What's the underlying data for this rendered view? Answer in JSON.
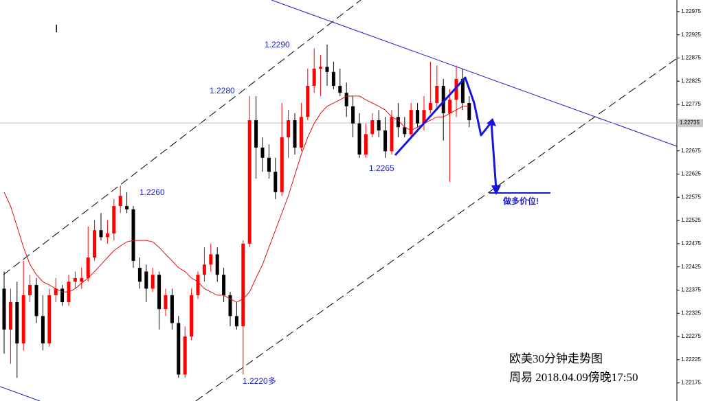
{
  "chart_data": {
    "type": "candlestick",
    "ylim": [
      1.22136,
      1.23
    ],
    "yticks": [
      1.22975,
      1.22925,
      1.22875,
      1.22825,
      1.22775,
      1.22675,
      1.22625,
      1.22575,
      1.22525,
      1.22475,
      1.22425,
      1.22375,
      1.22325,
      1.22275,
      1.22225,
      1.22175
    ],
    "up_color": "#ff0000",
    "down_color": "#000000",
    "open": [
      1.22378,
      1.2229,
      1.22349,
      1.2226,
      1.22364,
      1.22386,
      1.22319,
      1.2226,
      1.22364,
      1.22378,
      1.22349,
      1.22393,
      1.22393,
      1.22401,
      1.22445,
      1.22504,
      1.22489,
      1.22497,
      1.22556,
      1.22556,
      1.22549,
      1.22423,
      1.22415,
      1.22378,
      1.22408,
      1.22334,
      1.22364,
      1.22304,
      1.22193,
      1.22275,
      1.22364,
      1.22408,
      1.2243,
      1.22452,
      1.22408,
      1.22364,
      1.22319,
      1.22297,
      1.22475,
      1.22741,
      1.22682,
      1.2266,
      1.2263,
      1.22586,
      1.22704,
      1.22741,
      1.22682,
      1.22748,
      1.22815,
      1.22852,
      1.22856,
      1.22845,
      1.22815,
      1.228,
      1.22771,
      1.22734,
      1.22667,
      1.22711,
      1.22741,
      1.22719,
      1.22674,
      1.22748,
      1.22726,
      1.22711,
      1.22763,
      1.22734,
      1.22763,
      1.22778,
      1.22815,
      1.22756,
      1.22785,
      1.2283,
      1.22778
    ],
    "high": [
      1.22415,
      1.22378,
      1.22393,
      1.22438,
      1.22408,
      1.22401,
      1.22364,
      1.22378,
      1.22401,
      1.22386,
      1.22408,
      1.22415,
      1.22423,
      1.22512,
      1.22526,
      1.22541,
      1.22526,
      1.22571,
      1.226,
      1.22586,
      1.22556,
      1.22445,
      1.2243,
      1.22423,
      1.22415,
      1.22378,
      1.22378,
      1.22319,
      1.22297,
      1.22378,
      1.22415,
      1.22467,
      1.22475,
      1.22467,
      1.22423,
      1.22371,
      1.22349,
      1.22482,
      1.22793,
      1.22793,
      1.22704,
      1.22689,
      1.2266,
      1.22778,
      1.22763,
      1.22756,
      1.22778,
      1.22852,
      1.22896,
      1.22882,
      1.22904,
      1.22867,
      1.22852,
      1.22822,
      1.22793,
      1.22756,
      1.22734,
      1.22756,
      1.22763,
      1.22748,
      1.22763,
      1.22778,
      1.22748,
      1.22778,
      1.22778,
      1.22793,
      1.22867,
      1.22859,
      1.2283,
      1.22808,
      1.22859,
      1.22852,
      1.22793
    ],
    "low": [
      1.22238,
      1.22216,
      1.22186,
      1.22245,
      1.22349,
      1.22304,
      1.22245,
      1.22253,
      1.22349,
      1.22341,
      1.22341,
      1.22378,
      1.22378,
      1.22393,
      1.22438,
      1.22482,
      1.22475,
      1.22482,
      1.22541,
      1.22541,
      1.22423,
      1.22378,
      1.22349,
      1.22371,
      1.2229,
      1.22319,
      1.2229,
      1.22186,
      1.22186,
      1.22267,
      1.22356,
      1.22393,
      1.22415,
      1.22393,
      1.22349,
      1.22297,
      1.2229,
      1.22193,
      1.22467,
      1.22615,
      1.2263,
      1.22615,
      1.22571,
      1.22578,
      1.2266,
      1.22667,
      1.22674,
      1.22741,
      1.228,
      1.22793,
      1.22815,
      1.22808,
      1.22793,
      1.22748,
      1.22704,
      1.2266,
      1.2266,
      1.22704,
      1.22704,
      1.2266,
      1.22667,
      1.22704,
      1.22704,
      1.22704,
      1.22726,
      1.22719,
      1.22756,
      1.22763,
      1.22697,
      1.22608,
      1.22748,
      1.22763,
      1.22726
    ],
    "close": [
      1.2229,
      1.22349,
      1.2226,
      1.22364,
      1.22386,
      1.22319,
      1.2226,
      1.22364,
      1.22378,
      1.22349,
      1.22393,
      1.22401,
      1.22401,
      1.22445,
      1.22504,
      1.22489,
      1.22497,
      1.22556,
      1.22578,
      1.22549,
      1.22438,
      1.22393,
      1.22378,
      1.22408,
      1.22334,
      1.22364,
      1.22304,
      1.22193,
      1.22275,
      1.22364,
      1.22408,
      1.2243,
      1.22452,
      1.22408,
      1.22364,
      1.22319,
      1.22297,
      1.22475,
      1.22741,
      1.22682,
      1.2266,
      1.2263,
      1.22586,
      1.22704,
      1.22741,
      1.22682,
      1.22748,
      1.22815,
      1.22852,
      1.22856,
      1.22845,
      1.22815,
      1.228,
      1.22771,
      1.22734,
      1.22667,
      1.22711,
      1.22741,
      1.22719,
      1.22674,
      1.22748,
      1.22726,
      1.22711,
      1.22763,
      1.22734,
      1.22763,
      1.22778,
      1.22815,
      1.22756,
      1.22785,
      1.2283,
      1.22778,
      1.22741
    ],
    "ma": {
      "color": "#e01010",
      "values": [
        1.22586,
        1.22556,
        1.22512,
        1.22467,
        1.2243,
        1.22408,
        1.22393,
        1.22386,
        1.22378,
        1.22371,
        1.22371,
        1.22378,
        1.2239,
        1.22401,
        1.22415,
        1.2243,
        1.22445,
        1.2246,
        1.2247,
        1.22479,
        1.22482,
        1.22482,
        1.22482,
        1.22479,
        1.22467,
        1.22452,
        1.22438,
        1.22423,
        1.22415,
        1.22401,
        1.22393,
        1.22378,
        1.22371,
        1.22364,
        1.22364,
        1.22356,
        1.22349,
        1.22356,
        1.22371,
        1.22401,
        1.2243,
        1.22467,
        1.22504,
        1.22541,
        1.22578,
        1.22623,
        1.22667,
        1.22704,
        1.22734,
        1.22756,
        1.22771,
        1.22778,
        1.22785,
        1.22793,
        1.22793,
        1.22793,
        1.22785,
        1.22778,
        1.22771,
        1.22763,
        1.22748,
        1.22741,
        1.22726,
        1.22719,
        1.22726,
        1.22734,
        1.22741,
        1.22748,
        1.22748,
        1.22756,
        1.22763,
        1.22771,
        1.22771
      ]
    },
    "last_price": 1.22735,
    "annotations": [
      "1.2290",
      "1.2280",
      "1.2260",
      "1.2265",
      "1.2220多",
      "做多价位!"
    ],
    "caption": [
      "欧美30分钟走势图",
      "周易  2018.04.09傍晚17:50"
    ]
  }
}
